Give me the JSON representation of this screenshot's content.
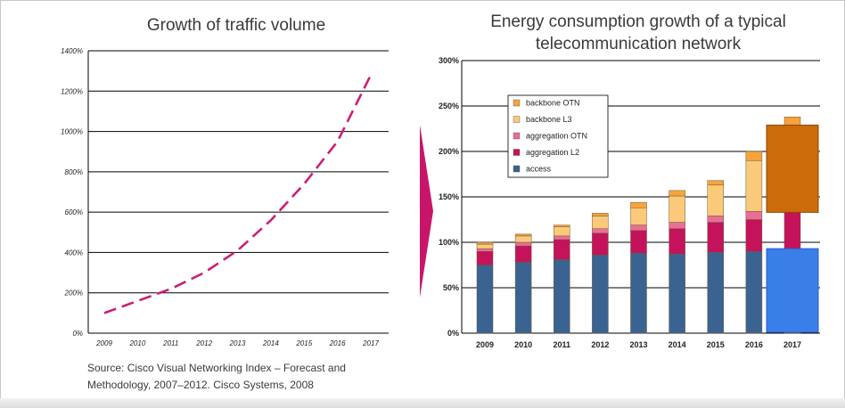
{
  "chart_data": [
    {
      "type": "line",
      "title": "Growth of traffic volume",
      "x": [
        "2009",
        "2010",
        "2011",
        "2012",
        "2013",
        "2014",
        "2015",
        "2016",
        "2017"
      ],
      "values": [
        100,
        160,
        220,
        300,
        410,
        560,
        740,
        950,
        1280
      ],
      "y_ticks": [
        "0%",
        "200%",
        "400%",
        "600%",
        "800%",
        "1000%",
        "1200%",
        "1400%"
      ],
      "ylim": [
        0,
        1400
      ],
      "line_style": "dashed",
      "color": "#cc1f73",
      "source": "Source: Cisco Visual Networking Index – Forecast and Methodology, 2007–2012. Cisco Systems, 2008"
    },
    {
      "type": "bar",
      "stacked": true,
      "title": "Energy consumption growth of a typical telecommunication network",
      "categories": [
        "2009",
        "2010",
        "2011",
        "2012",
        "2013",
        "2014",
        "2015",
        "2016",
        "2017"
      ],
      "y_ticks": [
        "0%",
        "50%",
        "100%",
        "150%",
        "200%",
        "250%",
        "300%"
      ],
      "ylim": [
        0,
        300
      ],
      "legend": [
        "backbone OTN",
        "backbone L3",
        "aggregation OTN",
        "aggregation L2",
        "access"
      ],
      "series": [
        {
          "name": "access",
          "color": "#3a6392",
          "values": [
            75,
            78,
            81,
            86,
            88,
            87,
            89,
            90,
            93
          ]
        },
        {
          "name": "aggregation L2",
          "color": "#c4135a",
          "values": [
            15,
            18,
            22,
            24,
            25,
            28,
            33,
            35,
            40
          ]
        },
        {
          "name": "aggregation OTN",
          "color": "#ea6e96",
          "values": [
            3,
            4,
            4,
            5,
            6,
            7,
            7,
            9,
            0
          ]
        },
        {
          "name": "backbone L3",
          "color": "#fbc97a",
          "values": [
            5,
            7,
            10,
            14,
            19,
            29,
            34,
            56,
            96
          ]
        },
        {
          "name": "backbone OTN",
          "color": "#f5a43c",
          "values": [
            2,
            2,
            2,
            3,
            6,
            6,
            5,
            10,
            9
          ]
        }
      ],
      "highlight_2017": {
        "top_color": "#cc6b0a",
        "bottom_color": "#3a7fe8"
      }
    }
  ]
}
